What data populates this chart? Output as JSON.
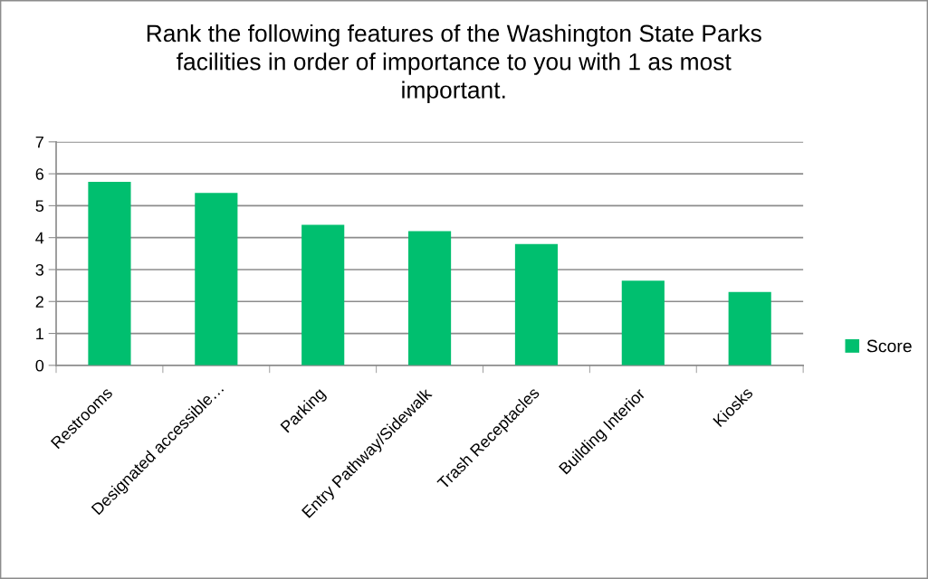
{
  "chart_data": {
    "type": "bar",
    "title": "Rank the following features of the Washington State Parks facilities in order of importance to you with 1 as most important.",
    "categories": [
      "Restrooms",
      "Designated accessible…",
      "Parking",
      "Entry Pathway/Sidewalk",
      "Trash Receptacles",
      "Building Interior",
      "Kiosks"
    ],
    "series": [
      {
        "name": "Score",
        "color": "#00bf6f",
        "values": [
          5.75,
          5.4,
          4.4,
          4.2,
          3.8,
          2.65,
          2.3
        ]
      }
    ],
    "ylim": [
      0,
      7
    ],
    "yticks": [
      0,
      1,
      2,
      3,
      4,
      5,
      6,
      7
    ],
    "grid": "y",
    "legend": "right"
  }
}
